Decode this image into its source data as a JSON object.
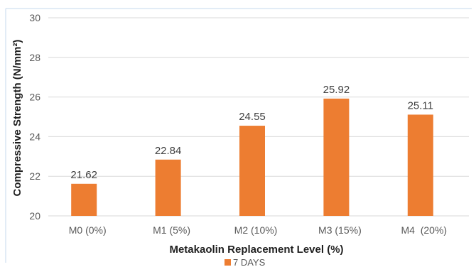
{
  "chart_data": {
    "type": "bar",
    "categories": [
      "M0 (0%)",
      "M1 (5%)",
      "M2 (10%)",
      "M3 (15%)",
      "M4  (20%)"
    ],
    "series": [
      {
        "name": "7 DAYS",
        "values": [
          21.62,
          22.84,
          24.55,
          25.92,
          25.11
        ],
        "color": "#ED7D31"
      }
    ],
    "data_labels": [
      "21.62",
      "22.84",
      "24.55",
      "25.92",
      "25.11"
    ],
    "xlabel": "Metakaolin Replacement Level (%)",
    "ylabel": "Compressive Strength (N/mm²)",
    "ylim": [
      20,
      30
    ],
    "yticks": [
      20,
      22,
      24,
      26,
      28,
      30
    ],
    "grid": true,
    "legend_position": "bottom",
    "colors": {
      "bar": "#ED7D31",
      "grid": "#d9d9d9",
      "frame": "#c5d9ec"
    }
  }
}
